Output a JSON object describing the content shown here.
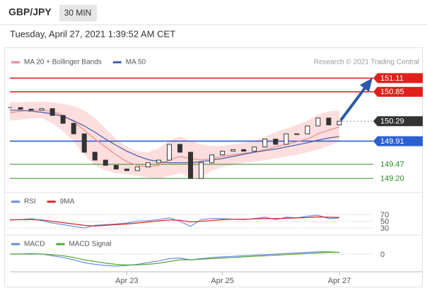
{
  "header": {
    "symbol": "GBP/JPY",
    "timeframe": "30 MIN",
    "datetime": "Tuesday, April 27, 2021 1:39:52 AM CET"
  },
  "chart_data": [
    {
      "type": "candlestick",
      "annotation": "Research © 2021 Trading Central",
      "categories": [
        null,
        null,
        null,
        null,
        null,
        null,
        null,
        null,
        null,
        null,
        null,
        "Apr 23",
        null,
        null,
        null,
        null,
        null,
        null,
        null,
        null,
        "Apr 25",
        null,
        null,
        null,
        null,
        null,
        null,
        null,
        null,
        null,
        null,
        "Apr 27"
      ],
      "close": [
        150.55,
        150.52,
        150.5,
        150.53,
        150.4,
        150.25,
        150.05,
        149.7,
        149.55,
        149.45,
        149.38,
        149.35,
        149.42,
        149.5,
        149.55,
        149.85,
        149.7,
        149.2,
        149.5,
        149.65,
        149.72,
        149.75,
        149.72,
        149.8,
        149.95,
        149.85,
        150.05,
        150.05,
        150.2,
        150.35,
        150.22,
        150.29
      ],
      "candle_color": "#333333",
      "ylim": [
        148.96,
        151.25
      ],
      "series": [
        {
          "name": "MA 20 + Bollinger Bands",
          "color": "#f08a8a",
          "band_color": "#fcd6d6",
          "values": [
            150.45,
            150.48,
            150.5,
            150.5,
            150.48,
            150.4,
            150.28,
            150.12,
            149.95,
            149.8,
            149.65,
            149.52,
            149.45,
            149.42,
            149.45,
            149.55,
            149.62,
            149.58,
            149.55,
            149.58,
            149.62,
            149.65,
            149.68,
            149.7,
            149.75,
            149.8,
            149.85,
            149.9,
            149.95,
            150.05,
            150.12,
            150.18
          ],
          "upper": [
            150.65,
            150.65,
            150.66,
            150.66,
            150.65,
            150.62,
            150.58,
            150.5,
            150.35,
            150.15,
            149.95,
            149.8,
            149.72,
            149.7,
            149.78,
            149.92,
            150.0,
            149.92,
            149.85,
            149.82,
            149.82,
            149.85,
            149.88,
            149.92,
            150.0,
            150.08,
            150.15,
            150.22,
            150.3,
            150.42,
            150.48,
            150.5
          ],
          "lower": [
            150.3,
            150.32,
            150.34,
            150.35,
            150.25,
            150.1,
            149.9,
            149.65,
            149.45,
            149.35,
            149.3,
            149.28,
            149.25,
            149.22,
            149.2,
            149.25,
            149.3,
            149.22,
            149.22,
            149.35,
            149.42,
            149.45,
            149.5,
            149.52,
            149.55,
            149.58,
            149.62,
            149.65,
            149.7,
            149.75,
            149.82,
            149.9
          ]
        },
        {
          "name": "MA 50",
          "color": "#3f5fa8",
          "values": [
            150.5,
            150.5,
            150.48,
            150.46,
            150.43,
            150.38,
            150.3,
            150.2,
            150.08,
            149.95,
            149.83,
            149.72,
            149.63,
            149.56,
            149.52,
            149.5,
            149.5,
            149.5,
            149.52,
            149.55,
            149.58,
            149.62,
            149.66,
            149.7,
            149.73,
            149.76,
            149.8,
            149.84,
            149.88,
            149.93,
            149.97,
            150.0
          ]
        }
      ],
      "levels": [
        {
          "value": 151.11,
          "label": "151.11",
          "color": "#e0201b",
          "tag": true,
          "dotted": false
        },
        {
          "value": 150.85,
          "label": "150.85",
          "color": "#e0201b",
          "tag": true,
          "dotted": false
        },
        {
          "value": 150.29,
          "label": "150.29",
          "color": "#333333",
          "tag": true,
          "dotted": true
        },
        {
          "value": 149.91,
          "label": "149.91",
          "color": "#2d5fd0",
          "tag": true,
          "dotted": false
        },
        {
          "value": 149.47,
          "label": "149.47",
          "color": "#2e8b22",
          "tag": false,
          "dotted": false
        },
        {
          "value": 149.2,
          "label": "149.20",
          "color": "#2e8b22",
          "tag": false,
          "dotted": false
        }
      ]
    },
    {
      "type": "line",
      "ylim": [
        20,
        87
      ],
      "yticks": [
        70,
        50,
        30
      ],
      "series": [
        {
          "name": "RSI",
          "color": "#6a8be0",
          "values": [
            55,
            55,
            58,
            52,
            45,
            40,
            35,
            30,
            38,
            40,
            42,
            45,
            50,
            52,
            55,
            60,
            50,
            35,
            55,
            58,
            58,
            56,
            55,
            58,
            62,
            55,
            62,
            60,
            65,
            68,
            58,
            60
          ]
        },
        {
          "name": "9MA",
          "color": "#e02020",
          "values": [
            54,
            55,
            55,
            54,
            50,
            46,
            42,
            38,
            36,
            38,
            40,
            42,
            45,
            48,
            51,
            54,
            53,
            48,
            50,
            52,
            55,
            56,
            56,
            57,
            58,
            58,
            59,
            60,
            61,
            63,
            62,
            61
          ]
        }
      ]
    },
    {
      "type": "line",
      "ylim": [
        -0.26,
        0.21
      ],
      "yticks": [
        0
      ],
      "series": [
        {
          "name": "MACD",
          "color": "#6a8be0",
          "values": [
            0.0,
            0.0,
            0.01,
            0.0,
            -0.03,
            -0.06,
            -0.1,
            -0.15,
            -0.18,
            -0.2,
            -0.21,
            -0.2,
            -0.18,
            -0.15,
            -0.12,
            -0.08,
            -0.07,
            -0.1,
            -0.08,
            -0.06,
            -0.05,
            -0.04,
            -0.03,
            -0.02,
            -0.01,
            0.0,
            0.01,
            0.02,
            0.03,
            0.04,
            0.04,
            0.03
          ]
        },
        {
          "name": "MACD Signal",
          "color": "#55aa33",
          "values": [
            0.0,
            0.0,
            0.0,
            0.0,
            -0.01,
            -0.03,
            -0.06,
            -0.1,
            -0.13,
            -0.16,
            -0.18,
            -0.19,
            -0.19,
            -0.18,
            -0.16,
            -0.13,
            -0.1,
            -0.1,
            -0.09,
            -0.08,
            -0.07,
            -0.06,
            -0.05,
            -0.04,
            -0.03,
            -0.02,
            -0.01,
            0.0,
            0.01,
            0.02,
            0.03,
            0.03
          ]
        }
      ]
    }
  ]
}
